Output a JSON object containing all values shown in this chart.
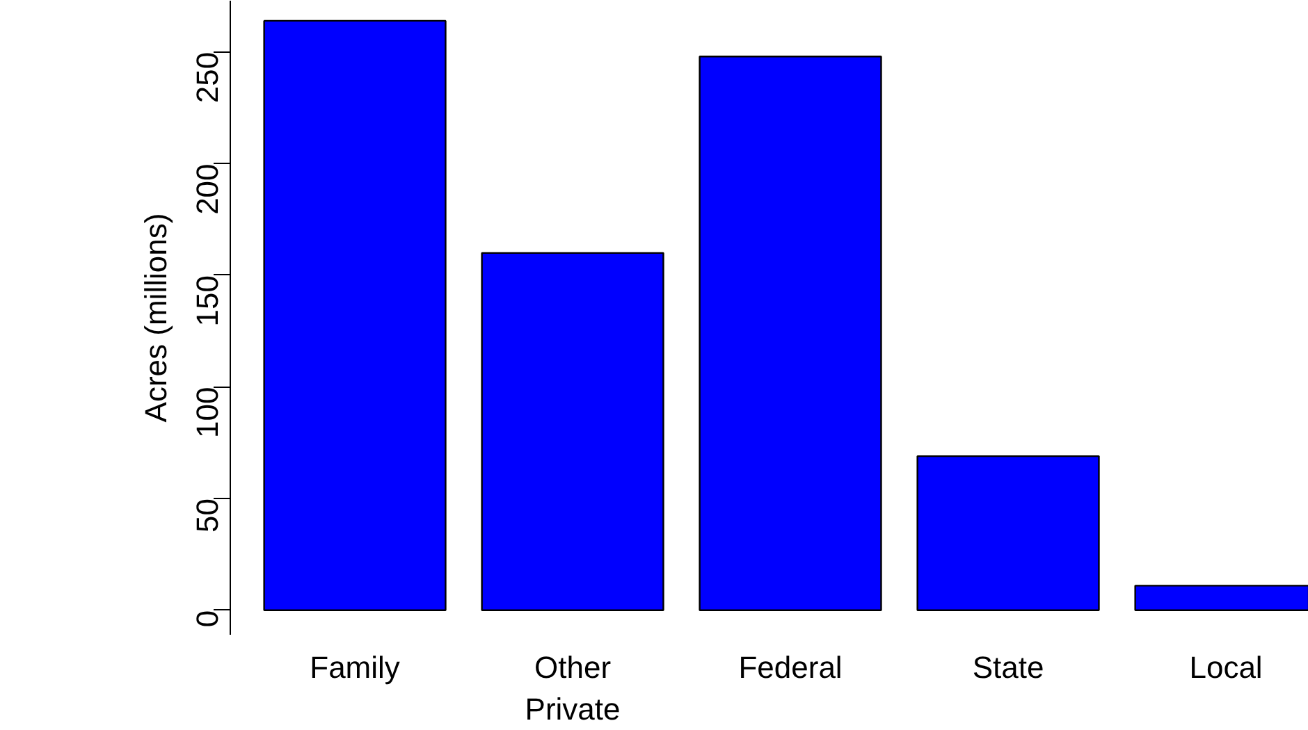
{
  "chart_data": {
    "type": "bar",
    "ylabel": "Acres (millions)",
    "categories": [
      "Family",
      "Other\nPrivate",
      "Federal",
      "State",
      "Local"
    ],
    "values": [
      264,
      160,
      248,
      69,
      11
    ],
    "color": "#0000ff",
    "ylim": [
      -11,
      273
    ],
    "yticks": [
      0,
      50,
      100,
      150,
      200,
      250
    ],
    "grid": false
  }
}
